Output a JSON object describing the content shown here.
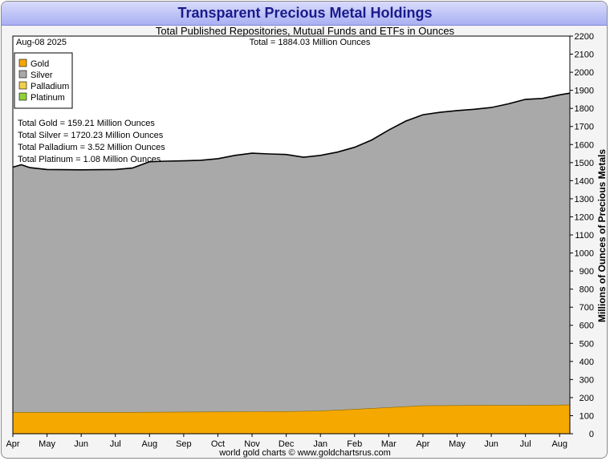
{
  "header": {
    "title": "Transparent Precious Metal Holdings",
    "subtitle": "Total Published Repositories, Mutual Funds and ETFs in Ounces",
    "date": "Aug-08  2025",
    "total": "Total = 1884.03 Million Ounces"
  },
  "legend": {
    "items": [
      {
        "label": "Gold",
        "color": "#f5a800"
      },
      {
        "label": "Silver",
        "color": "#a9a9a9"
      },
      {
        "label": "Palladium",
        "color": "#f2cf4a"
      },
      {
        "label": "Platinum",
        "color": "#8fd13a"
      }
    ]
  },
  "totals": [
    "Total Gold = 159.21 Million Ounces",
    "Total Silver = 1720.23 Million Ounces",
    "Total Palladium = 3.52 Million Ounces",
    "Total Platinum = 1.08 Million Ounces"
  ],
  "footer": "world gold charts © www.goldchartsrus.com",
  "chart_data": {
    "type": "area",
    "ylabel": "Millions of Ounces of Precious Metals",
    "ylim": [
      0,
      2200
    ],
    "yticks": [
      0,
      100,
      200,
      300,
      400,
      500,
      600,
      700,
      800,
      900,
      1000,
      1100,
      1200,
      1300,
      1400,
      1500,
      1600,
      1700,
      1800,
      1900,
      2000,
      2100,
      2200
    ],
    "xlim": [
      0,
      16.3
    ],
    "xticks": [
      {
        "x": 0,
        "label": "Apr"
      },
      {
        "x": 1,
        "label": "May"
      },
      {
        "x": 2,
        "label": "Jun"
      },
      {
        "x": 3,
        "label": "Jul"
      },
      {
        "x": 4,
        "label": "Aug"
      },
      {
        "x": 5,
        "label": "Sep"
      },
      {
        "x": 6,
        "label": "Oct"
      },
      {
        "x": 7,
        "label": "Nov"
      },
      {
        "x": 8,
        "label": "Dec"
      },
      {
        "x": 9,
        "label": "Jan"
      },
      {
        "x": 10,
        "label": "Feb"
      },
      {
        "x": 11,
        "label": "Mar"
      },
      {
        "x": 12,
        "label": "Apr"
      },
      {
        "x": 13,
        "label": "May"
      },
      {
        "x": 14,
        "label": "Jun"
      },
      {
        "x": 15,
        "label": "Jul"
      },
      {
        "x": 16,
        "label": "Aug"
      }
    ],
    "stack_order": [
      "Gold",
      "Silver",
      "Palladium",
      "Platinum"
    ],
    "series": [
      {
        "name": "Gold",
        "color": "#f5a800",
        "x": [
          0,
          1,
          2,
          3,
          4,
          5,
          6,
          7,
          8,
          9,
          10,
          11,
          12,
          13,
          14,
          15,
          16,
          16.3
        ],
        "values": [
          118,
          118,
          118,
          118,
          119,
          120,
          121,
          122,
          123,
          126,
          135,
          145,
          155,
          156,
          157,
          157,
          159,
          159.21
        ]
      },
      {
        "name": "Total",
        "color": "#000000",
        "x": [
          0,
          0.25,
          0.5,
          1,
          2,
          3,
          3.5,
          4,
          4.5,
          5,
          5.5,
          6,
          6.5,
          7,
          7.5,
          8,
          8.5,
          9,
          9.5,
          10,
          10.5,
          11,
          11.5,
          12,
          12.5,
          13,
          13.5,
          14,
          14.5,
          15,
          15.5,
          16,
          16.3
        ],
        "values": [
          1475,
          1488,
          1472,
          1462,
          1460,
          1462,
          1470,
          1505,
          1508,
          1510,
          1513,
          1522,
          1540,
          1552,
          1548,
          1545,
          1530,
          1540,
          1558,
          1585,
          1625,
          1680,
          1730,
          1765,
          1778,
          1788,
          1795,
          1805,
          1825,
          1850,
          1855,
          1875,
          1884.03
        ]
      }
    ]
  }
}
